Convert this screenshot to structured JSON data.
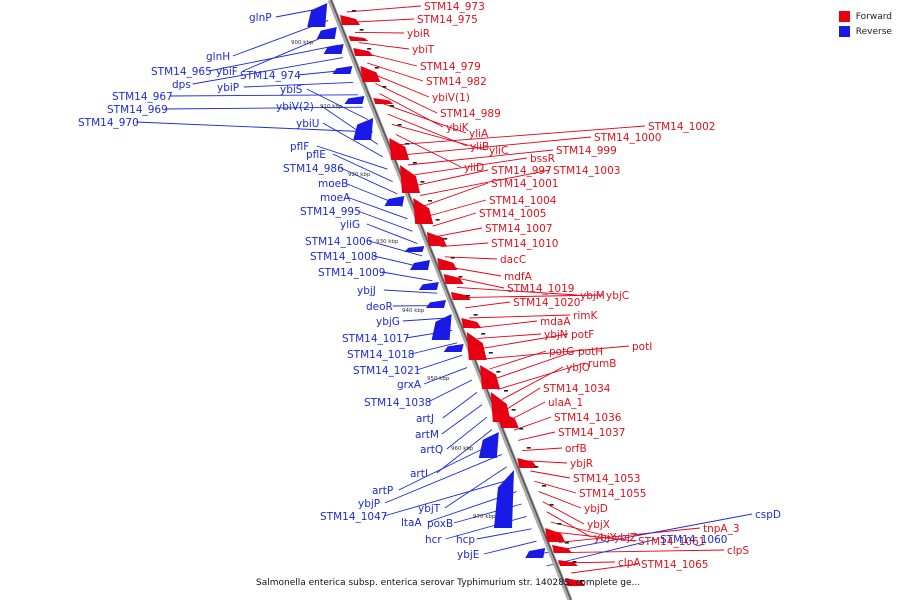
{
  "legend": [
    {
      "label": "Forward",
      "color": "#e60012"
    },
    {
      "label": "Reverse",
      "color": "#1a1ae6"
    }
  ],
  "caption": "Salmonella enterica subsp. enterica serovar Typhimurium str. 14028S, complete ge...",
  "ticks": [
    "900 kbp",
    "910 kbp",
    "920 kbp",
    "930 kbp",
    "940 kbp",
    "950 kbp",
    "960 kbp",
    "970 kbp"
  ],
  "forward_labels": [
    "STM14_973",
    "STM14_975",
    "ybiR",
    "ybiT",
    "STM14_979",
    "STM14_982",
    "ybiV(1)",
    "STM14_989",
    "ybiK",
    "yliA",
    "yliB",
    "yliC",
    "yliD",
    "STM14_1002",
    "STM14_1000",
    "STM14_999",
    "bssR",
    "STM14_997",
    "STM14_1003",
    "STM14_1001",
    "STM14_1004",
    "STM14_1005",
    "STM14_1007",
    "STM14_1010",
    "dacC",
    "mdfA",
    "STM14_1019",
    "ybjM",
    "ybjC",
    "STM14_1020",
    "rimK",
    "mdaA",
    "ybjN",
    "potF",
    "potI",
    "potG",
    "potH",
    "rumB",
    "ybjO",
    "STM14_1034",
    "ulaA_1",
    "STM14_1036",
    "STM14_1037",
    "orfB",
    "ybjR",
    "STM14_1053",
    "STM14_1055",
    "ybjD",
    "ybjX",
    "ybjY",
    "ybjZ",
    "STM14_1061",
    "tnpA_3",
    "clpS",
    "clpA",
    "STM14_1065"
  ],
  "reverse_labels": [
    "glnP",
    "glnH",
    "ybiF",
    "STM14_965",
    "dps",
    "STM14_974",
    "ybiP",
    "STM14_967",
    "STM14_969",
    "ybiS",
    "STM14_970",
    "ybiV(2)",
    "ybiU",
    "pflF",
    "pflE",
    "STM14_986",
    "moeB",
    "moeA",
    "STM14_995",
    "yliG",
    "STM14_1006",
    "STM14_1008",
    "STM14_1009",
    "ybjJ",
    "deoR",
    "ybjG",
    "STM14_1017",
    "STM14_1018",
    "STM14_1021",
    "grxA",
    "STM14_1038",
    "artJ",
    "artM",
    "artQ",
    "artI",
    "artP",
    "ybjP",
    "ybjT",
    "STM14_1047",
    "ltaA",
    "poxB",
    "hcr",
    "hcp",
    "ybjE",
    "cspD",
    "STM14_1060"
  ]
}
